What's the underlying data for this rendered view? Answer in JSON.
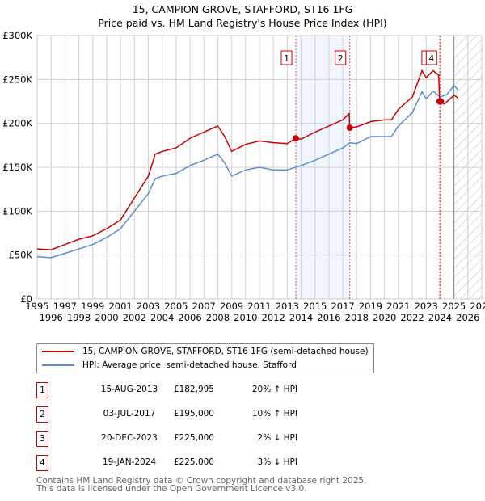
{
  "chart_data": {
    "type": "line",
    "title": "15, CAMPION GROVE, STAFFORD, ST16 1FG",
    "subtitle": "Price paid vs. HM Land Registry's House Price Index (HPI)",
    "xlim": [
      1995,
      2027
    ],
    "ylim": [
      0,
      300000
    ],
    "y_ticks": [
      {
        "v": 0,
        "label": "£0"
      },
      {
        "v": 50000,
        "label": "£50K"
      },
      {
        "v": 100000,
        "label": "£100K"
      },
      {
        "v": 150000,
        "label": "£150K"
      },
      {
        "v": 200000,
        "label": "£200K"
      },
      {
        "v": 250000,
        "label": "£250K"
      },
      {
        "v": 300000,
        "label": "£300K"
      }
    ],
    "x_ticks": [
      "1995",
      "1996",
      "1997",
      "1998",
      "1999",
      "2000",
      "2001",
      "2002",
      "2003",
      "2004",
      "2005",
      "2006",
      "2007",
      "2008",
      "2009",
      "2010",
      "2011",
      "2012",
      "2013",
      "2014",
      "2015",
      "2016",
      "2017",
      "2018",
      "2019",
      "2020",
      "2021",
      "2022",
      "2023",
      "2024",
      "2025",
      "2026",
      "2027"
    ],
    "grid": true,
    "forecast_from": 2025.0,
    "shaded_range": [
      2013.62,
      2017.5
    ],
    "series": [
      {
        "name": "15, CAMPION GROVE, STAFFORD, ST16 1FG (semi-detached house)",
        "color": "#cc0000",
        "x": [
          1995,
          1996,
          1997,
          1998,
          1999,
          2000,
          2001,
          2002,
          2003,
          2003.5,
          2004,
          2005,
          2006,
          2007,
          2008,
          2008.5,
          2009,
          2010,
          2011,
          2012,
          2013,
          2013.62,
          2014,
          2015,
          2016,
          2017,
          2017.45,
          2017.5,
          2018,
          2019,
          2020,
          2020.5,
          2021,
          2022,
          2022.7,
          2023,
          2023.5,
          2023.9,
          2023.97,
          2024.05,
          2024.3,
          2025,
          2025.3
        ],
        "y": [
          57000,
          56000,
          62000,
          68000,
          72000,
          80000,
          90000,
          115000,
          140000,
          165000,
          168000,
          172000,
          183000,
          190000,
          197000,
          185000,
          168000,
          176000,
          180000,
          178000,
          177000,
          182995,
          182000,
          190000,
          197000,
          204000,
          211000,
          195000,
          196000,
          202000,
          204000,
          204000,
          216000,
          230000,
          260000,
          252000,
          260000,
          255000,
          225000,
          225000,
          222000,
          232000,
          229000
        ]
      },
      {
        "name": "HPI: Average price, semi-detached house, Stafford",
        "color": "#5b8fd0",
        "x": [
          1995,
          1996,
          1997,
          1998,
          1999,
          2000,
          2001,
          2002,
          2003,
          2003.5,
          2004,
          2005,
          2006,
          2007,
          2008,
          2008.5,
          2009,
          2010,
          2011,
          2012,
          2013,
          2014,
          2015,
          2016,
          2017,
          2017.5,
          2018,
          2019,
          2020,
          2020.5,
          2021,
          2022,
          2022.7,
          2023,
          2023.5,
          2024,
          2024.5,
          2025,
          2025.3
        ],
        "y": [
          48000,
          47000,
          52000,
          57000,
          62000,
          70000,
          80000,
          100000,
          120000,
          137000,
          140000,
          143000,
          152000,
          158000,
          165000,
          155000,
          140000,
          147000,
          150000,
          147000,
          147000,
          152000,
          158000,
          165000,
          172000,
          178000,
          177000,
          185000,
          185000,
          185000,
          197000,
          212000,
          236000,
          228000,
          237000,
          230000,
          233000,
          243000,
          238000
        ]
      }
    ],
    "sales": [
      {
        "id": "1",
        "x": 2013.62,
        "price": 182995,
        "date": "15-AUG-2013",
        "price_label": "£182,995",
        "hpi": "20% ↑ HPI"
      },
      {
        "id": "2",
        "x": 2017.5,
        "price": 195000,
        "date": "03-JUL-2017",
        "price_label": "£195,000",
        "hpi": "10% ↑ HPI"
      },
      {
        "id": "3",
        "x": 2023.97,
        "price": 225000,
        "date": "20-DEC-2023",
        "price_label": "£225,000",
        "hpi": "2% ↓ HPI"
      },
      {
        "id": "4",
        "x": 2024.05,
        "price": 225000,
        "date": "19-JAN-2024",
        "price_label": "£225,000",
        "hpi": "3% ↓ HPI"
      }
    ]
  },
  "legend": {
    "red": "15, CAMPION GROVE, STAFFORD, ST16 1FG (semi-detached house)",
    "blue": "HPI: Average price, semi-detached house, Stafford"
  },
  "footer": {
    "line1": "Contains HM Land Registry data © Crown copyright and database right 2025.",
    "line2": "This data is licensed under the Open Government Licence v3.0."
  }
}
